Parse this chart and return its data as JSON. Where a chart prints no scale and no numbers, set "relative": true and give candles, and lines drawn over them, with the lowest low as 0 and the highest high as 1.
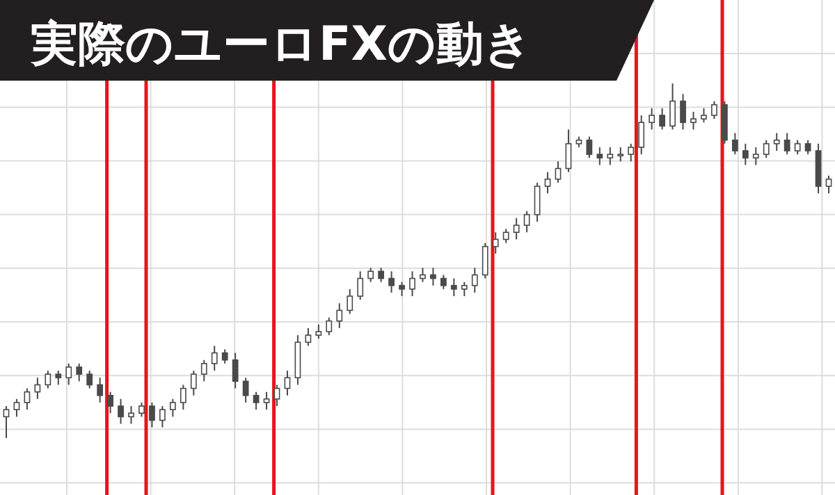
{
  "chart_data": {
    "type": "candlestick",
    "title": "実際のユーロFXの動き",
    "relative": true,
    "grid": true,
    "color": "#4a4a4a",
    "categories": [
      null,
      null,
      null,
      null,
      null,
      null,
      null,
      null,
      null,
      null,
      null,
      null,
      null,
      null,
      null,
      null,
      null,
      null,
      null,
      null,
      null,
      null,
      null,
      null,
      null,
      null,
      null,
      null,
      null,
      null,
      null,
      null,
      null,
      null,
      null,
      null,
      null,
      null,
      null,
      null,
      null,
      null,
      null,
      null,
      null,
      null,
      null,
      null,
      null,
      null,
      null,
      null,
      null,
      null,
      null,
      null,
      null,
      null,
      null,
      null,
      null,
      null,
      null,
      null,
      null,
      null,
      null,
      null,
      null,
      null,
      null,
      null,
      null,
      null,
      null,
      null,
      null,
      null,
      null,
      null
    ],
    "ohlc": [
      [
        0.06,
        0.09,
        0,
        0.08
      ],
      [
        0.08,
        0.11,
        0.06,
        0.1
      ],
      [
        0.1,
        0.14,
        0.08,
        0.13
      ],
      [
        0.13,
        0.17,
        0.11,
        0.15
      ],
      [
        0.15,
        0.19,
        0.14,
        0.18
      ],
      [
        0.18,
        0.19,
        0.15,
        0.17
      ],
      [
        0.17,
        0.21,
        0.15,
        0.2
      ],
      [
        0.2,
        0.21,
        0.16,
        0.18
      ],
      [
        0.18,
        0.19,
        0.14,
        0.15
      ],
      [
        0.15,
        0.17,
        0.1,
        0.12
      ],
      [
        0.12,
        0.13,
        0.07,
        0.09
      ],
      [
        0.09,
        0.11,
        0.04,
        0.06
      ],
      [
        0.06,
        0.09,
        0.04,
        0.07
      ],
      [
        0.07,
        0.1,
        0.06,
        0.09
      ],
      [
        0.09,
        0.1,
        0.03,
        0.05
      ],
      [
        0.05,
        0.09,
        0.03,
        0.08
      ],
      [
        0.08,
        0.11,
        0.06,
        0.1
      ],
      [
        0.1,
        0.15,
        0.08,
        0.14
      ],
      [
        0.14,
        0.19,
        0.12,
        0.18
      ],
      [
        0.18,
        0.22,
        0.16,
        0.21
      ],
      [
        0.21,
        0.26,
        0.19,
        0.24
      ],
      [
        0.24,
        0.25,
        0.21,
        0.22
      ],
      [
        0.22,
        0.24,
        0.14,
        0.16
      ],
      [
        0.16,
        0.17,
        0.1,
        0.12
      ],
      [
        0.12,
        0.13,
        0.08,
        0.1
      ],
      [
        0.1,
        0.13,
        0.08,
        0.11
      ],
      [
        0.11,
        0.15,
        0.09,
        0.14
      ],
      [
        0.14,
        0.19,
        0.12,
        0.17
      ],
      [
        0.17,
        0.29,
        0.15,
        0.27
      ],
      [
        0.27,
        0.31,
        0.26,
        0.29
      ],
      [
        0.29,
        0.32,
        0.28,
        0.3
      ],
      [
        0.3,
        0.34,
        0.29,
        0.33
      ],
      [
        0.33,
        0.38,
        0.31,
        0.36
      ],
      [
        0.36,
        0.42,
        0.35,
        0.4
      ],
      [
        0.4,
        0.47,
        0.39,
        0.45
      ],
      [
        0.45,
        0.48,
        0.44,
        0.47
      ],
      [
        0.47,
        0.48,
        0.44,
        0.45
      ],
      [
        0.45,
        0.47,
        0.41,
        0.43
      ],
      [
        0.43,
        0.44,
        0.4,
        0.42
      ],
      [
        0.42,
        0.47,
        0.4,
        0.45
      ],
      [
        0.45,
        0.48,
        0.44,
        0.46
      ],
      [
        0.46,
        0.48,
        0.43,
        0.45
      ],
      [
        0.45,
        0.46,
        0.42,
        0.43
      ],
      [
        0.43,
        0.45,
        0.4,
        0.42
      ],
      [
        0.42,
        0.44,
        0.4,
        0.43
      ],
      [
        0.43,
        0.48,
        0.41,
        0.46
      ],
      [
        0.46,
        0.55,
        0.45,
        0.54
      ],
      [
        0.54,
        0.58,
        0.52,
        0.56
      ],
      [
        0.56,
        0.59,
        0.55,
        0.58
      ],
      [
        0.58,
        0.62,
        0.56,
        0.6
      ],
      [
        0.6,
        0.64,
        0.58,
        0.63
      ],
      [
        0.63,
        0.72,
        0.61,
        0.71
      ],
      [
        0.71,
        0.75,
        0.69,
        0.73
      ],
      [
        0.73,
        0.78,
        0.72,
        0.76
      ],
      [
        0.76,
        0.87,
        0.75,
        0.83
      ],
      [
        0.83,
        0.85,
        0.82,
        0.84
      ],
      [
        0.84,
        0.85,
        0.79,
        0.8
      ],
      [
        0.8,
        0.82,
        0.77,
        0.79
      ],
      [
        0.79,
        0.82,
        0.77,
        0.8
      ],
      [
        0.8,
        0.82,
        0.78,
        0.8
      ],
      [
        0.8,
        0.83,
        0.78,
        0.82
      ],
      [
        0.82,
        0.91,
        0.8,
        0.89
      ],
      [
        0.89,
        0.93,
        0.87,
        0.91
      ],
      [
        0.91,
        0.93,
        0.87,
        0.88
      ],
      [
        0.88,
        1,
        0.87,
        0.95
      ],
      [
        0.95,
        0.97,
        0.87,
        0.89
      ],
      [
        0.89,
        0.92,
        0.87,
        0.9
      ],
      [
        0.9,
        0.93,
        0.89,
        0.91
      ],
      [
        0.91,
        0.95,
        0.9,
        0.94
      ],
      [
        0.94,
        0.95,
        0.83,
        0.84
      ],
      [
        0.84,
        0.86,
        0.8,
        0.81
      ],
      [
        0.81,
        0.83,
        0.77,
        0.79
      ],
      [
        0.79,
        0.82,
        0.77,
        0.8
      ],
      [
        0.8,
        0.84,
        0.79,
        0.83
      ],
      [
        0.83,
        0.86,
        0.81,
        0.84
      ],
      [
        0.84,
        0.86,
        0.8,
        0.81
      ],
      [
        0.81,
        0.84,
        0.8,
        0.83
      ],
      [
        0.83,
        0.84,
        0.8,
        0.81
      ],
      [
        0.81,
        0.83,
        0.69,
        0.71
      ],
      [
        0.71,
        0.74,
        0.69,
        0.73
      ]
    ]
  }
}
